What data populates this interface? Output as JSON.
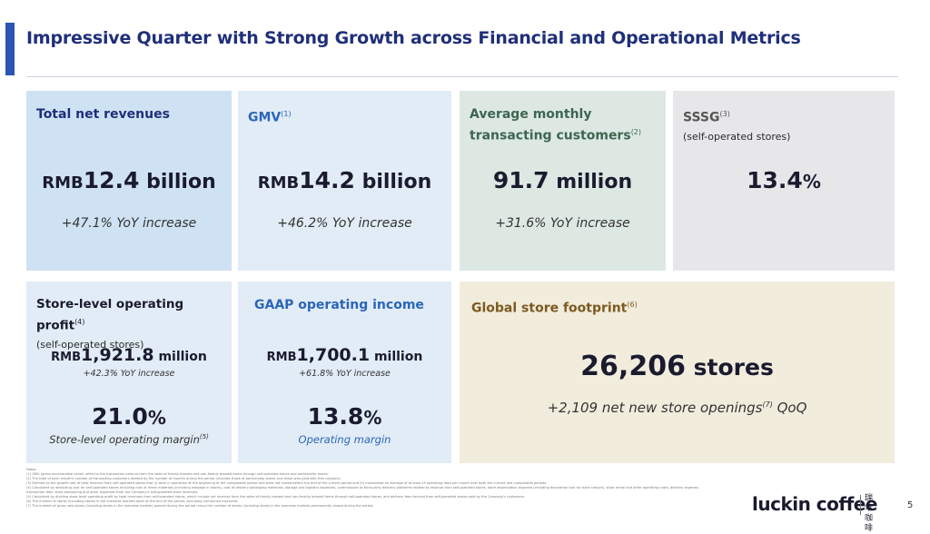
{
  "title": "Impressive Quarter with Strong Growth across Financial and Operational Metrics",
  "cards": {
    "revenue": {
      "label": "Total net revenues",
      "unit": "RMB",
      "value": "12.4",
      "suffix": " billion",
      "note": "+47.1% YoY increase"
    },
    "gmv": {
      "label": "GMV",
      "sup": "(1)",
      "unit": "RMB",
      "value": "14.2",
      "suffix": " billion",
      "note": "+46.2% YoY increase"
    },
    "customers": {
      "label_line1": "Average monthly",
      "label_line2": "transacting customers",
      "sup": "(2)",
      "value": "91.7",
      "suffix": " million",
      "note": "+31.6% YoY increase"
    },
    "sssg": {
      "label": "SSSG",
      "sup": "(3)",
      "sub": "(self-operated stores)",
      "value": "13.4",
      "suffix": "%"
    },
    "store_profit": {
      "label": "Store-level operating profit",
      "sup": "(4)",
      "sub": "(self-operated stores)",
      "unit": "RMB",
      "value": "1,921.8",
      "suffix": " million",
      "note": "+42.3% YoY increase",
      "margin_value": "21.0",
      "margin_suffix": "%",
      "margin_label": "Store-level operating margin",
      "margin_sup": "(5)"
    },
    "gaap": {
      "label": "GAAP operating income",
      "unit": "RMB",
      "value": "1,700.1",
      "suffix": " million",
      "note": "+61.8% YoY increase",
      "margin_value": "13.8",
      "margin_suffix": "%",
      "margin_label": "Operating margin"
    },
    "stores": {
      "label": "Global store footprint",
      "sup": "(6)",
      "value": "26,206",
      "suffix": " stores",
      "note_pre": "+2,109 net new store openings",
      "note_sup": "(7)",
      "note_post": " QoQ"
    }
  },
  "notes": [
    "Notes:",
    "(1) GMV (gross merchandise value) refers to the transaction amount from the sales of freshly brewed and non-freshly brewed items through self-operated stores and partnership stores.",
    "(2) The total of each month's number of transacting customers divided by the number of months during the period (includes those of partnership stores and those who paid with free coupons).",
    "(3) Defined as the growth rate of total revenue from self-operated stores that (i) were in operation at the beginning of the comparable period and were not closed before the end of the current period and (ii) maintained an average of at least 15 operating days per month over both the current and comparable periods.",
    "(4) Calculated by deducting cost for self-operated stores including cost of direct materials (including wastage in stores), cost of delivery packaging materials, storage and logistics expenses, commissions to third-party delivery platforms related to revenue from self-operated stores, store depreciation expense (including decoration loss for store closure), store rental and other operating costs, delivery expense, transaction fees, store pampering and other expenses from the Company's self-operated store revenues.",
    "(5) Calculated by dividing store-level operating profit by total revenues from self-operated stores, which include net revenue from the sales of freshly brewed and non-freshly brewed items through self-operated stores, and delivery fees derived from self-operated stores paid by the Company's customers.",
    "(6) The number of stores (including stores in the overseas market) open at the end of the period, excluding unmanned machines.",
    "(7) The number of gross new stores (including stores in the overseas market) opened during the period minus the number of stores (including stores in the overseas market) permanently closed during the period."
  ],
  "brand": {
    "name": "luckin coffee",
    "cn_line1": "瑞幸",
    "cn_line2": "咖啡"
  },
  "page_number": "5"
}
